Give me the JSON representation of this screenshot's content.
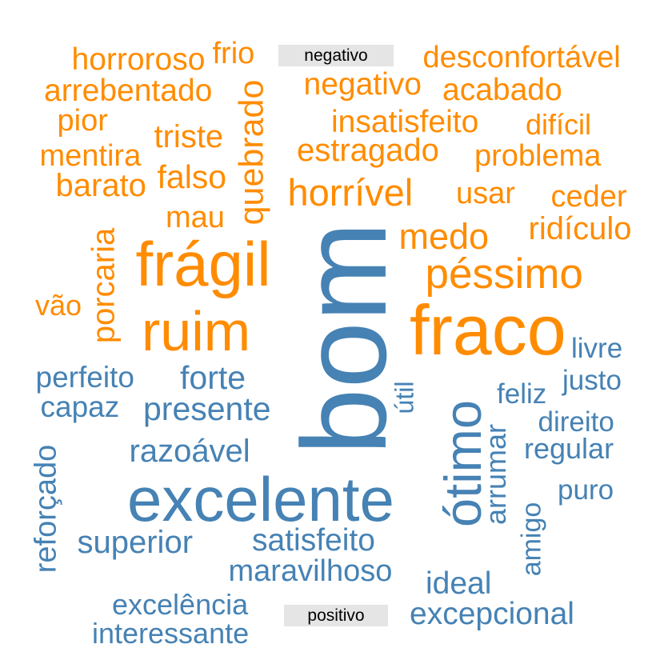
{
  "groups": {
    "negative": {
      "label": "negativo",
      "color": "#ff8c00",
      "words": [
        "horroroso",
        "frio",
        "desconfortável",
        "arrebentado",
        "negativo",
        "acabado",
        "pior",
        "quebrado",
        "insatisfeito",
        "difícil",
        "triste",
        "mentira",
        "estragado",
        "problema",
        "barato",
        "falso",
        "horrível",
        "usar",
        "ceder",
        "mau",
        "medo",
        "ridículo",
        "frágil",
        "porcaria",
        "péssimo",
        "vão",
        "ruim",
        "fraco"
      ]
    },
    "positive": {
      "label": "positivo",
      "color": "#4682b4",
      "words": [
        "bom",
        "livre",
        "perfeito",
        "forte",
        "justo",
        "útil",
        "feliz",
        "capaz",
        "presente",
        "ótimo",
        "direito",
        "arrumar",
        "regular",
        "razoável",
        "reforçado",
        "excelente",
        "puro",
        "superior",
        "satisfeito",
        "amigo",
        "maravilhoso",
        "ideal",
        "excelência",
        "excepcional",
        "interessante"
      ]
    }
  }
}
